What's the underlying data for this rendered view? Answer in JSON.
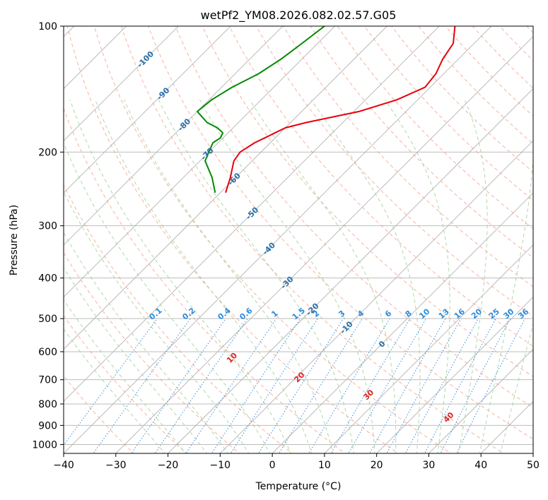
{
  "chart_data": {
    "type": "skew-t",
    "title": "wetPf2_YM08.2026.082.02.57.G05",
    "xlabel": "Temperature (°C)",
    "ylabel": "Pressure (hPa)",
    "xlim": [
      -40,
      50
    ],
    "ylim": [
      1050,
      100
    ],
    "y_scale": "log",
    "grid": true,
    "x_ticks": [
      -40,
      -30,
      -20,
      -10,
      0,
      10,
      20,
      30,
      40,
      50
    ],
    "y_ticks": [
      100,
      200,
      300,
      400,
      500,
      600,
      700,
      800,
      900,
      1000
    ],
    "colors": {
      "temperature": "#e8000b",
      "dewpoint": "#008a00",
      "isotherm": "#b3b3b3",
      "dry_adiabat": "#f6a58c",
      "moist_adiabat": "#a7d3a1",
      "mixing_ratio": "#3a8fd9",
      "isotherm_label": "#2a6fa8",
      "mixing_ratio_label": "#2c8cdc",
      "theta_label": "#d62728"
    },
    "isotherm_labels": [
      "-100",
      "-90",
      "-80",
      "-70",
      "-60",
      "-50",
      "-40",
      "-30",
      "-20",
      "-10",
      "0"
    ],
    "isotherm_label_values": [
      -100,
      -90,
      -80,
      -70,
      -60,
      -50,
      -40,
      -30,
      -20,
      -10,
      0
    ],
    "isotherm_label_pressures": [
      120,
      145,
      172,
      202,
      232,
      280,
      340,
      410,
      475,
      525,
      575
    ],
    "mixing_ratio_labels": [
      "0.1",
      "0.2",
      "0.4",
      "0.6",
      "1",
      "1.5",
      "2",
      "3",
      "4",
      "6",
      "8",
      "10",
      "13",
      "16",
      "20",
      "25",
      "30",
      "36"
    ],
    "mixing_ratio_values": [
      0.1,
      0.2,
      0.4,
      0.6,
      1,
      1.5,
      2,
      3,
      4,
      6,
      8,
      10,
      13,
      16,
      20,
      25,
      30,
      36
    ],
    "theta_labels": [
      "10",
      "20",
      "30",
      "40"
    ],
    "theta_label_values": [
      10,
      20,
      30,
      40
    ],
    "theta_label_pressures": [
      620,
      690,
      760,
      860
    ],
    "series": [
      {
        "name": "temperature",
        "pressure": [
          250,
          230,
          210,
          200,
          190,
          185,
          180,
          175,
          170,
          160,
          150,
          140,
          130,
          120,
          110,
          100
        ],
        "temperature": [
          -59,
          -61,
          -63.5,
          -64,
          -63,
          -62,
          -61,
          -60,
          -57,
          -49,
          -44,
          -41,
          -41.5,
          -43,
          -44,
          -47
        ]
      },
      {
        "name": "dewpoint",
        "pressure": [
          250,
          230,
          210,
          200,
          190,
          185,
          180,
          175,
          170,
          160,
          150,
          140,
          130,
          120,
          110,
          100
        ],
        "dewpoint": [
          -61,
          -64.5,
          -69,
          -70,
          -71,
          -70.5,
          -71,
          -73,
          -76,
          -80,
          -79.5,
          -78,
          -75.5,
          -74,
          -73,
          -72
        ]
      }
    ]
  }
}
